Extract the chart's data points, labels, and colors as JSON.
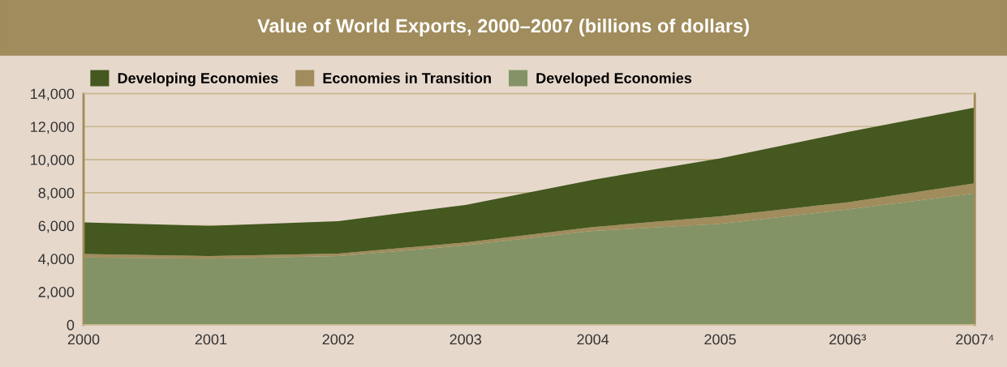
{
  "chart_data": {
    "type": "area",
    "stacked": true,
    "title": "Value of World Exports, 2000–2007 (billions of dollars)",
    "categories": [
      "2000",
      "2001",
      "2002",
      "2003",
      "2004",
      "2005",
      "2006³",
      "2007⁴"
    ],
    "series": [
      {
        "name": "Developed Economies",
        "color": "#839366",
        "values": [
          4080,
          4000,
          4160,
          4810,
          5680,
          6120,
          6980,
          7960
        ]
      },
      {
        "name": "Economies in Transition",
        "color": "#a08c5c",
        "values": [
          210,
          160,
          150,
          180,
          240,
          450,
          440,
          610
        ]
      },
      {
        "name": "Developing Economies",
        "color": "#44581f",
        "values": [
          1910,
          1830,
          1960,
          2270,
          2860,
          3510,
          4250,
          4580
        ]
      }
    ],
    "ylim": [
      0,
      14000
    ],
    "yticks": [
      {
        "value": 0,
        "label": "0"
      },
      {
        "value": 2000,
        "label": "2,000"
      },
      {
        "value": 4000,
        "label": "4,000"
      },
      {
        "value": 6000,
        "label": "6,000"
      },
      {
        "value": 8000,
        "label": "8,000"
      },
      {
        "value": 10000,
        "label": "10,000"
      },
      {
        "value": 12000,
        "label": "12,000"
      },
      {
        "value": 14000,
        "label": "14,000"
      }
    ],
    "grid": "y",
    "legend": "top left"
  }
}
